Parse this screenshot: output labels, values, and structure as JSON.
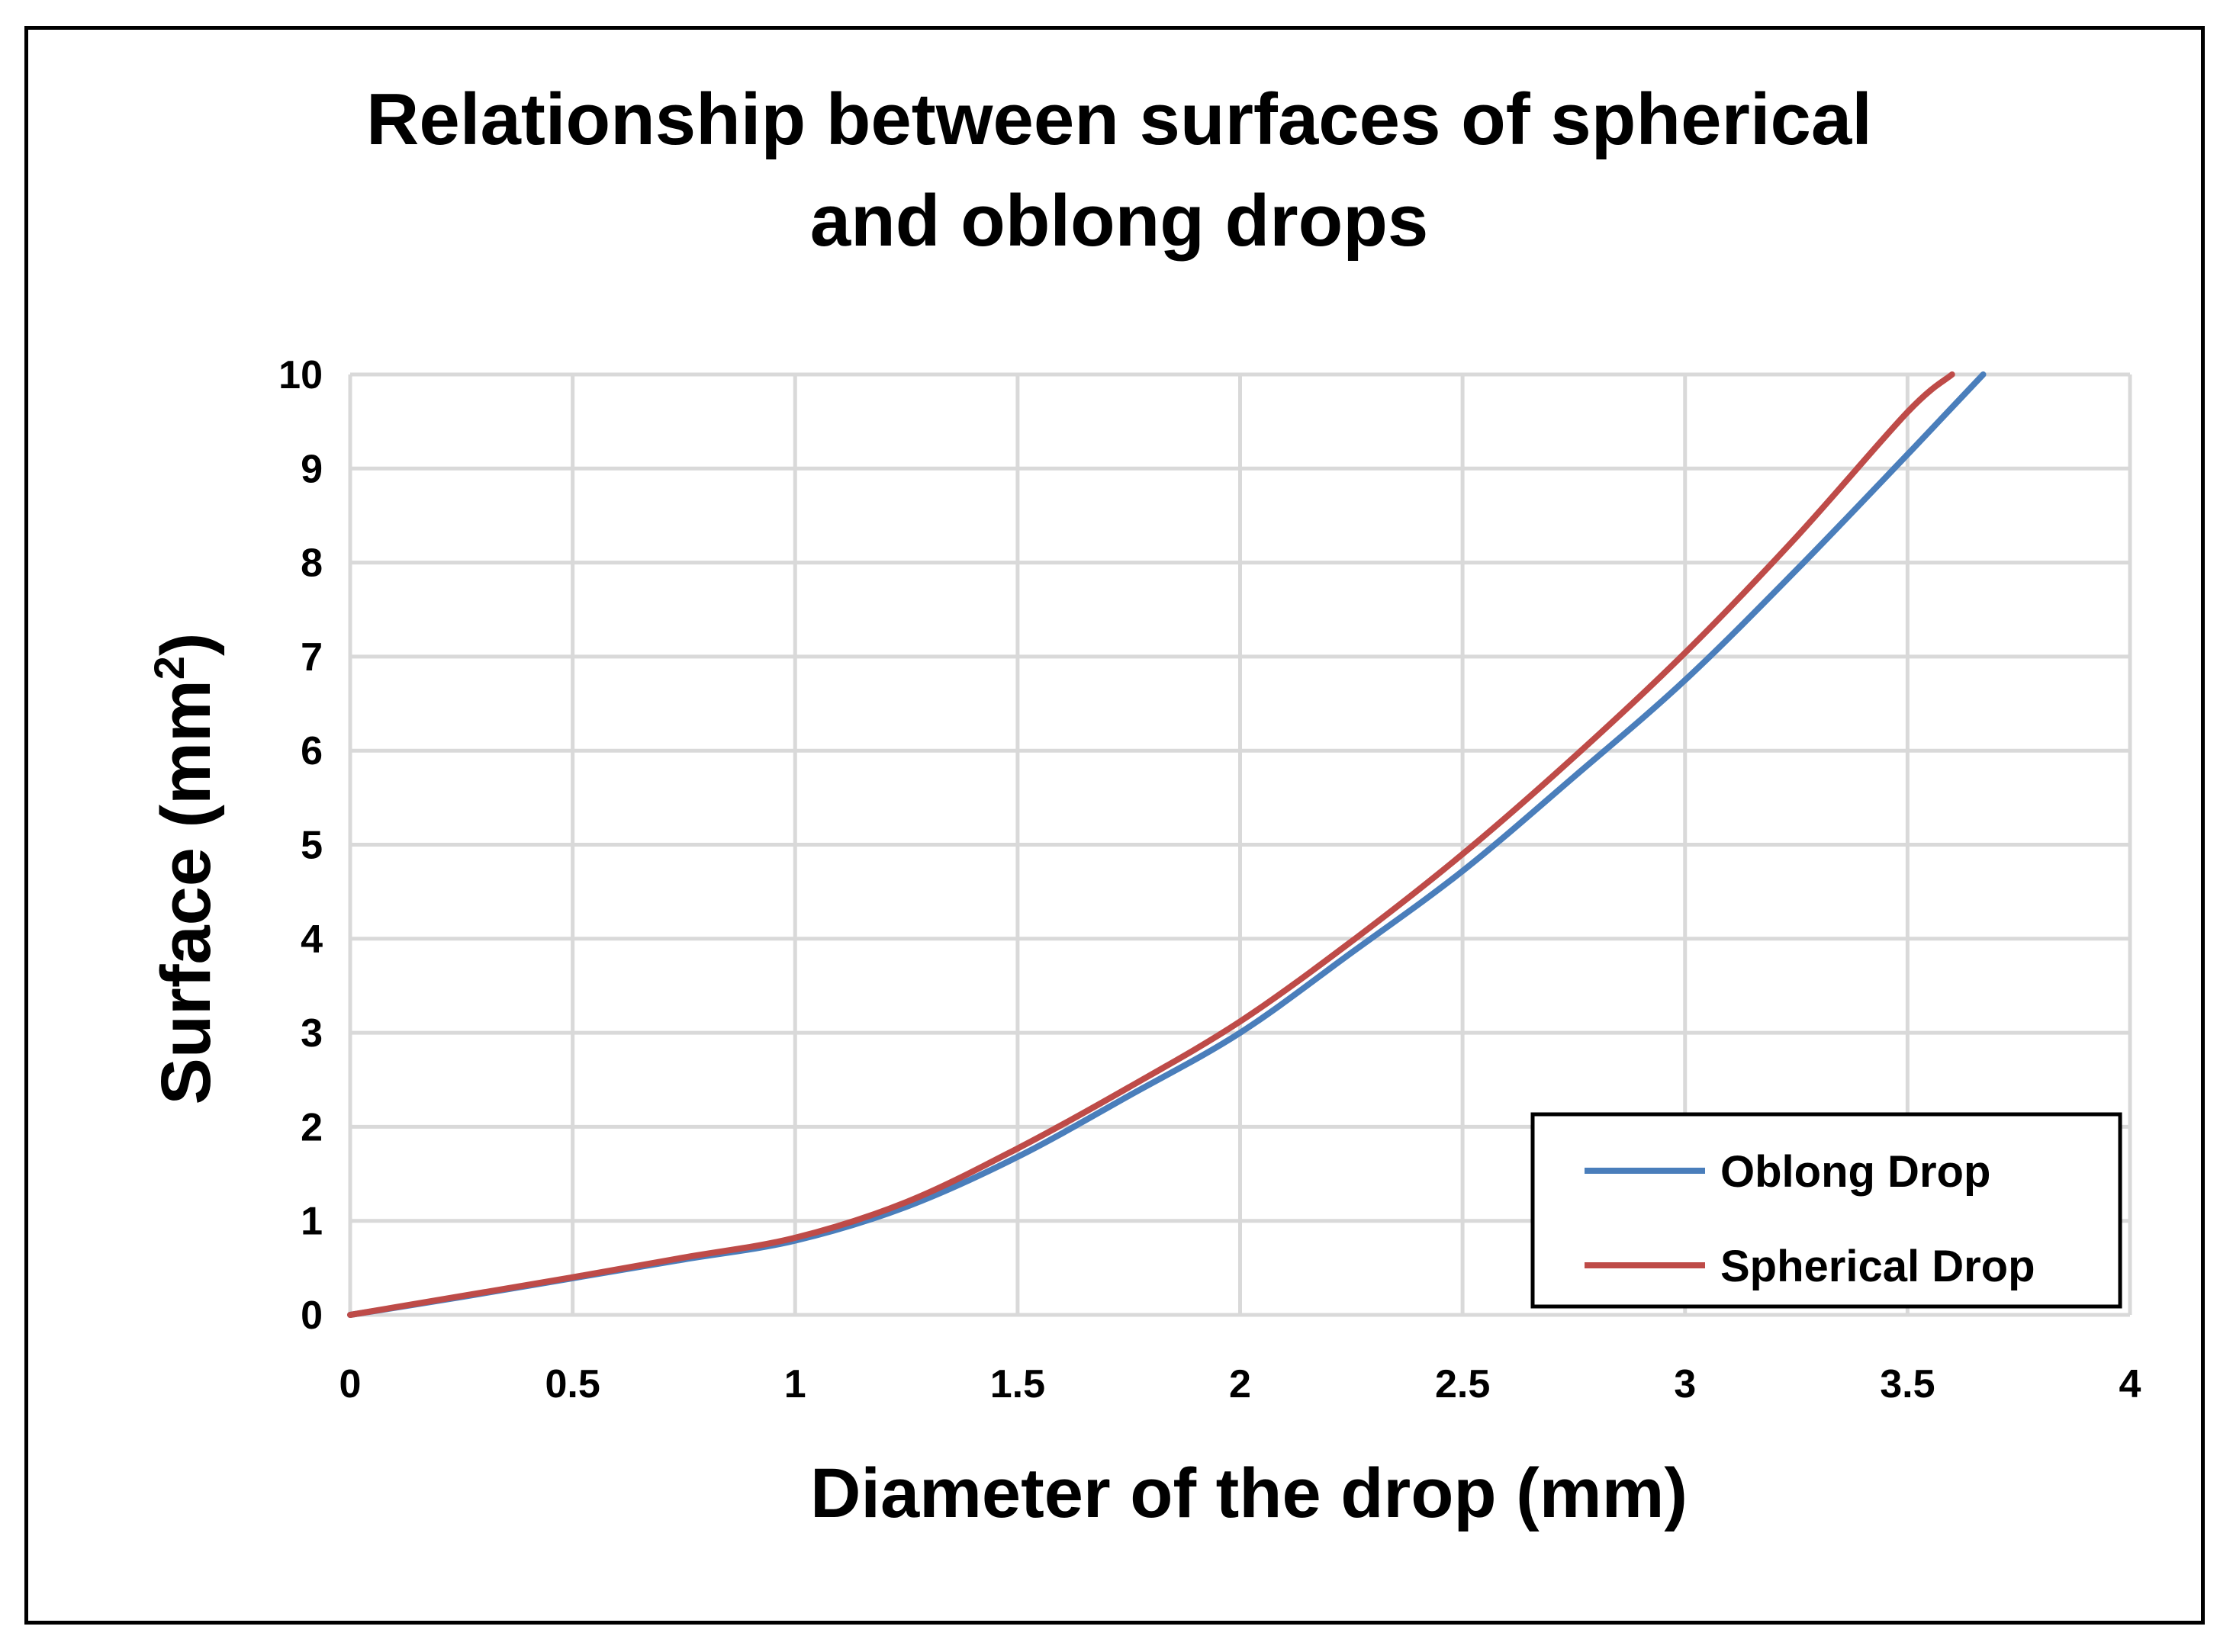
{
  "chart_data": {
    "type": "line",
    "title_lines": [
      "Relationship between surfaces of spherical",
      "and oblong drops"
    ],
    "xlabel": "Diameter of the drop (mm)",
    "ylabel_main": "Surface (mm",
    "ylabel_sup": "2",
    "ylabel_close": ")",
    "xlim": [
      0,
      4
    ],
    "ylim": [
      0,
      10
    ],
    "x_ticks": [
      "0",
      "0.5",
      "1",
      "1.5",
      "2",
      "2.5",
      "3",
      "3.5",
      "4"
    ],
    "y_ticks": [
      "0",
      "1",
      "2",
      "3",
      "4",
      "5",
      "6",
      "7",
      "8",
      "9",
      "10"
    ],
    "grid": true,
    "legend_position": "bottom-right",
    "series": [
      {
        "name": "Oblong Drop",
        "color": "#4a7ebb",
        "x": [
          0,
          0.25,
          0.5,
          0.75,
          1.0,
          1.25,
          1.5,
          1.75,
          2.0,
          2.25,
          2.5,
          2.75,
          3.0,
          3.25,
          3.5,
          3.67
        ],
        "y": [
          0,
          0.19,
          0.39,
          0.59,
          0.79,
          1.15,
          1.68,
          2.33,
          3.0,
          3.85,
          4.72,
          5.72,
          6.75,
          7.92,
          9.15,
          10.0
        ]
      },
      {
        "name": "Spherical Drop",
        "color": "#be4b48",
        "x": [
          0,
          0.25,
          0.5,
          0.75,
          1.0,
          1.25,
          1.5,
          1.75,
          2.0,
          2.25,
          2.5,
          2.75,
          3.0,
          3.25,
          3.5,
          3.6
        ],
        "y": [
          0,
          0.2,
          0.4,
          0.61,
          0.82,
          1.2,
          1.77,
          2.42,
          3.12,
          3.97,
          4.9,
          5.93,
          7.04,
          8.27,
          9.6,
          10.0
        ]
      }
    ]
  }
}
